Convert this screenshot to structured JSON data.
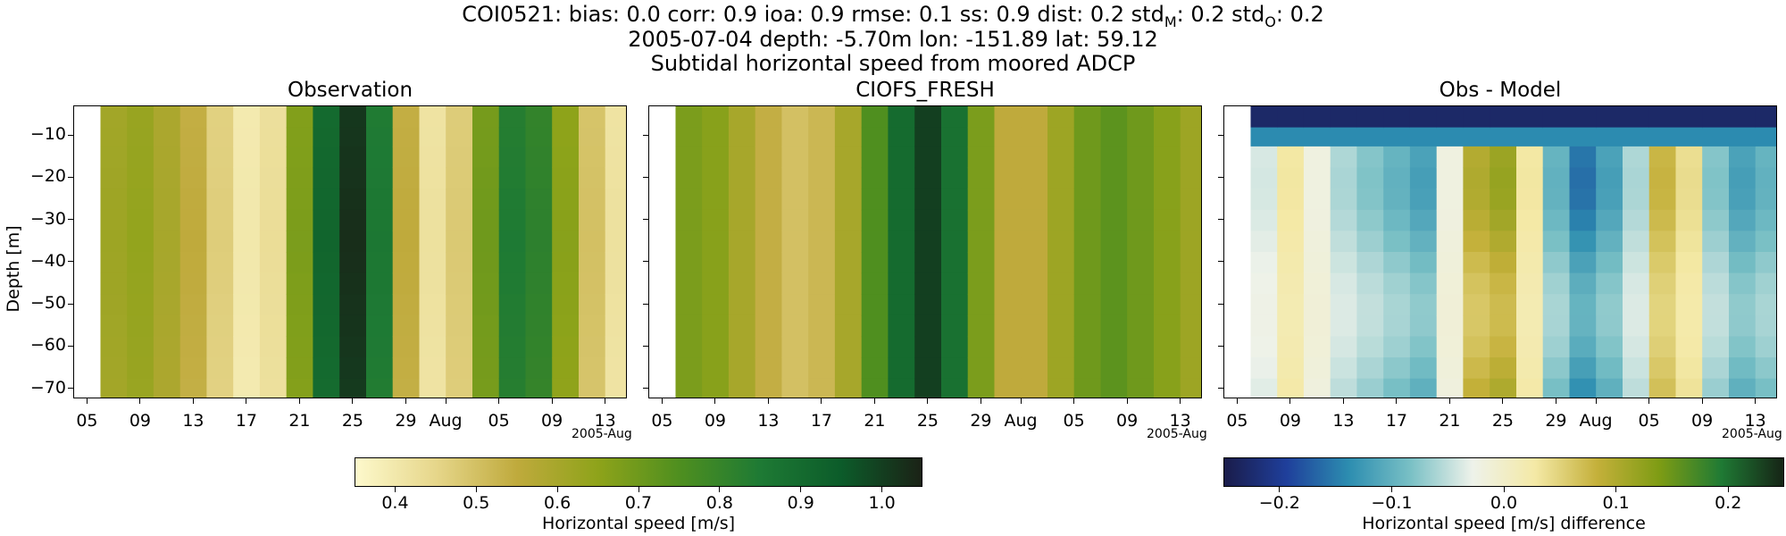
{
  "figure": {
    "title_line1": "COI0521: bias: 0.0  corr: 0.9  ioa: 0.9  rmse: 0.1  ss: 0.9  dist: 0.2  std",
    "title_line1_sub_m": "M",
    "title_line1_mid": ": 0.2  std",
    "title_line1_sub_o": "O",
    "title_line1_end": ": 0.2",
    "title_line2": "2005-07-04 depth: -5.70m lon: -151.89 lat: 59.12",
    "title_line3": "Subtidal horizontal speed from moored ADCP"
  },
  "panels": [
    {
      "title": "Observation"
    },
    {
      "title": "CIOFS_FRESH"
    },
    {
      "title": "Obs - Model"
    }
  ],
  "axes": {
    "ylabel": "Depth [m]",
    "yticks": [
      "−10",
      "−20",
      "−30",
      "−40",
      "−50",
      "−60",
      "−70"
    ],
    "xticks": [
      "05",
      "09",
      "13",
      "17",
      "21",
      "25",
      "29",
      "Aug",
      "05",
      "09",
      "13"
    ],
    "x_offset_label": "2005-Aug"
  },
  "colorbars": [
    {
      "label": "Horizontal speed [m/s]",
      "ticks": [
        "0.4",
        "0.5",
        "0.6",
        "0.7",
        "0.8",
        "0.9",
        "1.0"
      ],
      "range": [
        0.35,
        1.05
      ],
      "colormap": [
        "#fdf9cc",
        "#e6d68a",
        "#bfaa3c",
        "#8ea31a",
        "#4f8f1f",
        "#1e7a34",
        "#0c5c2a",
        "#1b2216"
      ]
    },
    {
      "label": "Horizontal speed [m/s] difference",
      "ticks": [
        "−0.2",
        "−0.1",
        "0.0",
        "0.1",
        "0.2"
      ],
      "range": [
        -0.25,
        0.25
      ],
      "colormap": [
        "#1a1c4a",
        "#1f3f9b",
        "#2c8db0",
        "#79c0c5",
        "#eef2ea",
        "#f4e9a6",
        "#c4b03a",
        "#7e9c14",
        "#1f7a34",
        "#162416"
      ]
    }
  ],
  "chart_data": [
    {
      "type": "heatmap",
      "title": "Observation",
      "xlabel": "",
      "ylabel": "Depth [m]",
      "x": [
        "2005-07-06",
        "2005-07-08",
        "2005-07-10",
        "2005-07-12",
        "2005-07-14",
        "2005-07-16",
        "2005-07-18",
        "2005-07-20",
        "2005-07-22",
        "2005-07-24",
        "2005-07-26",
        "2005-07-28",
        "2005-07-30",
        "2005-08-01",
        "2005-08-03",
        "2005-08-05",
        "2005-08-07",
        "2005-08-09",
        "2005-08-11",
        "2005-08-13"
      ],
      "y": [
        -6,
        -10,
        -15,
        -20,
        -25,
        -30,
        -35,
        -40,
        -45,
        -50,
        -55,
        -60,
        -65,
        -70
      ],
      "values_by_time": [
        0.62,
        0.64,
        0.6,
        0.55,
        0.47,
        0.4,
        0.43,
        0.68,
        0.92,
        1.03,
        0.86,
        0.55,
        0.42,
        0.48,
        0.7,
        0.85,
        0.82,
        0.66,
        0.5,
        0.42
      ],
      "ylim": [
        -72,
        -3
      ],
      "colorbar_range": [
        0.35,
        1.05
      ]
    },
    {
      "type": "heatmap",
      "title": "CIOFS_FRESH",
      "xlabel": "",
      "ylabel": "",
      "x": [
        "2005-07-06",
        "2005-07-08",
        "2005-07-10",
        "2005-07-12",
        "2005-07-14",
        "2005-07-16",
        "2005-07-18",
        "2005-07-20",
        "2005-07-22",
        "2005-07-24",
        "2005-07-26",
        "2005-07-28",
        "2005-07-30",
        "2005-08-01",
        "2005-08-03",
        "2005-08-05",
        "2005-08-07",
        "2005-08-09",
        "2005-08-11",
        "2005-08-13"
      ],
      "y": [
        -6,
        -10,
        -15,
        -20,
        -25,
        -30,
        -35,
        -40,
        -45,
        -50,
        -55,
        -60,
        -65,
        -70
      ],
      "values_by_time": [
        0.68,
        0.66,
        0.6,
        0.54,
        0.5,
        0.52,
        0.6,
        0.75,
        0.9,
        1.0,
        0.88,
        0.68,
        0.55,
        0.55,
        0.62,
        0.7,
        0.73,
        0.7,
        0.66,
        0.62
      ],
      "ylim": [
        -72,
        -3
      ],
      "colorbar_range": [
        0.35,
        1.05
      ]
    },
    {
      "type": "heatmap",
      "title": "Obs - Model",
      "xlabel": "",
      "ylabel": "",
      "x": [
        "2005-07-06",
        "2005-07-08",
        "2005-07-10",
        "2005-07-12",
        "2005-07-14",
        "2005-07-16",
        "2005-07-18",
        "2005-07-20",
        "2005-07-22",
        "2005-07-24",
        "2005-07-26",
        "2005-07-28",
        "2005-07-30",
        "2005-08-01",
        "2005-08-03",
        "2005-08-05",
        "2005-08-07",
        "2005-08-09",
        "2005-08-11",
        "2005-08-13"
      ],
      "y": [
        -6,
        -10,
        -15,
        -20,
        -25,
        -30,
        -35,
        -40,
        -45,
        -50,
        -55,
        -60,
        -65,
        -70
      ],
      "values_by_time": [
        -0.04,
        0.03,
        -0.02,
        -0.06,
        -0.08,
        -0.1,
        -0.12,
        -0.02,
        0.1,
        0.12,
        0.03,
        -0.1,
        -0.16,
        -0.12,
        -0.06,
        0.08,
        0.04,
        -0.08,
        -0.12,
        -0.1
      ],
      "surface_layer_values": [
        -0.23,
        -0.14
      ],
      "ylim": [
        -72,
        -3
      ],
      "colorbar_range": [
        -0.25,
        0.25
      ]
    }
  ]
}
